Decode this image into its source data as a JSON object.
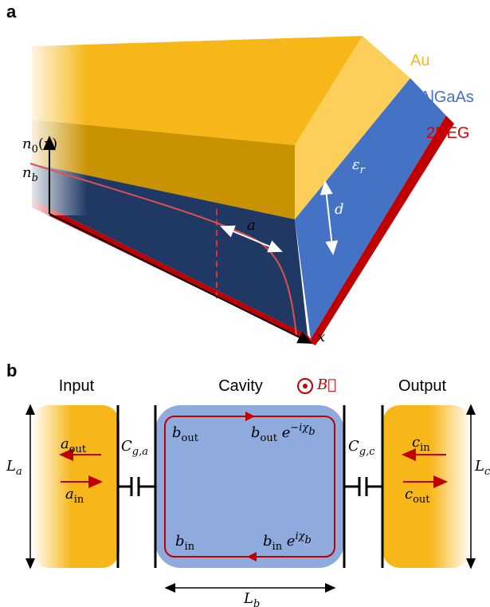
{
  "panel_a": {
    "label": "a",
    "layers": [
      "Au",
      "AlGaAs",
      "2DEG"
    ],
    "math": {
      "n0": [
        [
          "n",
          "i"
        ],
        [
          "0",
          "sub"
        ],
        [
          "(",
          "r"
        ],
        [
          "x",
          "i"
        ],
        [
          ")",
          "r"
        ]
      ],
      "nb": [
        [
          "n",
          "i"
        ],
        [
          "b",
          "isub"
        ]
      ],
      "eps": [
        [
          "ε",
          "i"
        ],
        [
          "r",
          "isub"
        ]
      ],
      "d": [
        [
          "d",
          "i"
        ]
      ],
      "a": [
        [
          "a",
          "i"
        ]
      ],
      "x": [
        [
          "x",
          "i"
        ]
      ]
    }
  },
  "panel_b": {
    "label": "b",
    "sections": [
      "Input",
      "Cavity",
      "Output"
    ],
    "math": {
      "B": [
        [
          "B⃗",
          "i"
        ]
      ],
      "Cga": [
        [
          "C",
          "i"
        ],
        [
          "g,a",
          "isub"
        ]
      ],
      "Cgc": [
        [
          "C",
          "i"
        ],
        [
          "g,c",
          "isub"
        ]
      ],
      "aout": [
        [
          "a",
          "i"
        ],
        [
          "out",
          "sub"
        ]
      ],
      "ain": [
        [
          "a",
          "i"
        ],
        [
          "in",
          "sub"
        ]
      ],
      "cin": [
        [
          "c",
          "i"
        ],
        [
          "in",
          "sub"
        ]
      ],
      "cout": [
        [
          "c",
          "i"
        ],
        [
          "out",
          "sub"
        ]
      ],
      "bout": [
        [
          "b",
          "i"
        ],
        [
          "out",
          "sub"
        ]
      ],
      "boutexp": [
        [
          "b",
          "i"
        ],
        [
          "out",
          "sub"
        ],
        [
          " e",
          "i"
        ],
        [
          "−iχ",
          "sup"
        ],
        [
          "b",
          "supsub"
        ]
      ],
      "bin": [
        [
          "b",
          "i"
        ],
        [
          "in",
          "sub"
        ]
      ],
      "binexp": [
        [
          "b",
          "i"
        ],
        [
          "in",
          "sub"
        ],
        [
          " e",
          "i"
        ],
        [
          "iχ",
          "sup"
        ],
        [
          "b",
          "supsub"
        ]
      ],
      "La": [
        [
          "L",
          "i"
        ],
        [
          "a",
          "isub"
        ]
      ],
      "Lb": [
        [
          "L",
          "i"
        ],
        [
          "b",
          "isub"
        ]
      ],
      "Lc": [
        [
          "L",
          "i"
        ],
        [
          "c",
          "isub"
        ]
      ]
    }
  }
}
